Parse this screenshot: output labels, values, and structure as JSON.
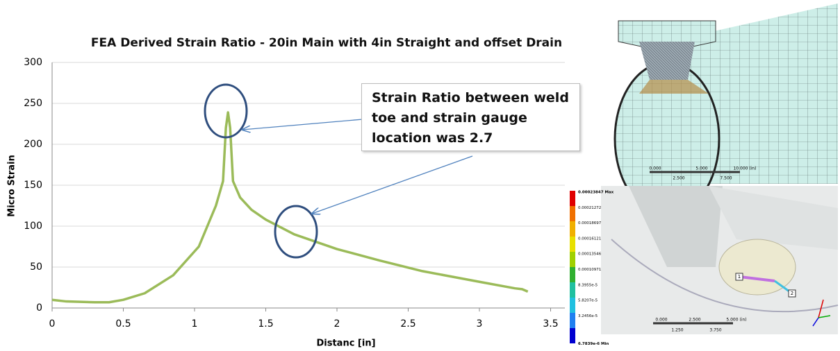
{
  "chart_data": {
    "type": "line",
    "title": "FEA Derived Strain Ratio - 20in Main with 4in Straight and offset Drain",
    "x_label": "Distanc  [in]",
    "y_label": "Micro Strain",
    "x": [
      0,
      0.1,
      0.2,
      0.3,
      0.4,
      0.5,
      0.65,
      0.85,
      1.03,
      1.15,
      1.2,
      1.22,
      1.235,
      1.25,
      1.27,
      1.32,
      1.4,
      1.5,
      1.7,
      2,
      2.3,
      2.6,
      3,
      3.25,
      3.3,
      3.34
    ],
    "values": [
      10,
      8,
      7.5,
      7,
      7,
      10,
      18,
      40,
      75,
      125,
      155,
      220,
      239,
      220,
      155,
      135,
      120,
      108,
      90,
      72,
      58,
      45,
      32,
      24,
      23,
      20
    ],
    "color": "#9bbb59",
    "xlim": [
      0,
      3.6
    ],
    "xticks": [
      0,
      0.5,
      1,
      1.5,
      2,
      2.5,
      3,
      3.5
    ],
    "ylim": [
      0,
      300
    ],
    "yticks": [
      0,
      50,
      100,
      150,
      200,
      250,
      300
    ],
    "grid": true,
    "annotation": "Strain Ratio between weld toe and strain gauge location was  2.7"
  },
  "images": {
    "colorbar_labels": [
      "0.00023847 Max",
      "0.00021272",
      "0.00018697",
      "0.00016121",
      "0.00013546",
      "0.00010971",
      "8.3955e-5",
      "5.8207e-5",
      "3.2456e-5",
      "6.7839e-6 Min"
    ],
    "colorbar_colors": [
      "#e00000",
      "#f07000",
      "#f0b000",
      "#e8e000",
      "#a0d000",
      "#30b030",
      "#20c0a0",
      "#20c0e0",
      "#2080f0",
      "#0000d0"
    ],
    "top_scale_top": [
      "0.000",
      "5.000",
      "10.000 (in)"
    ],
    "top_scale_bottom": [
      "2.500",
      "7.500"
    ],
    "bottom_scale_top": [
      "0.000",
      "2.500",
      "5.000 (in)"
    ],
    "bottom_scale_bottom": [
      "1.250",
      "3.750"
    ],
    "probe_labels": [
      "1",
      "2"
    ]
  }
}
